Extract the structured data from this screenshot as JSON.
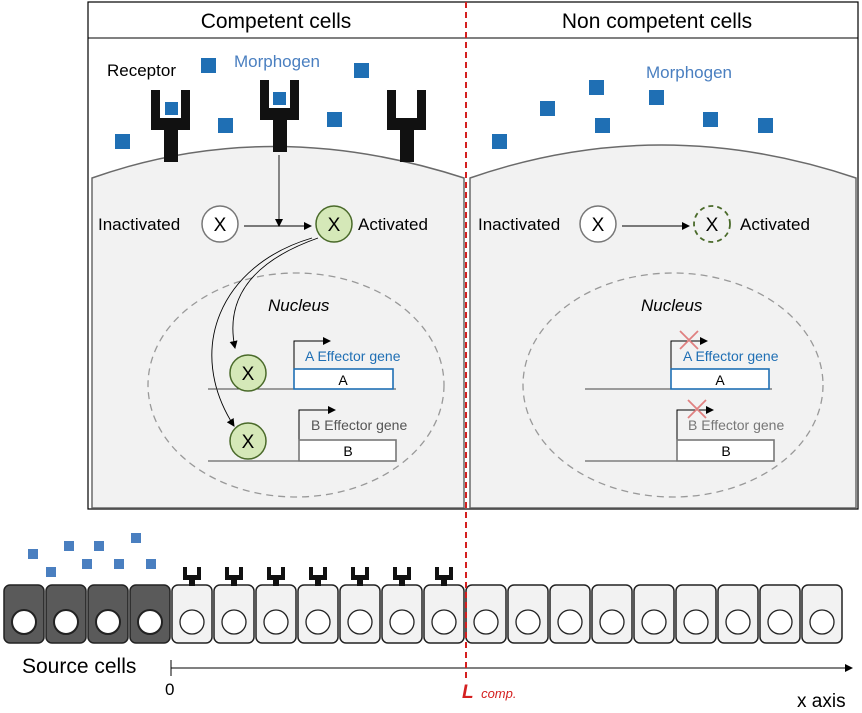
{
  "panels": {
    "left_title": "Competent cells",
    "right_title": "Non competent cells"
  },
  "labels": {
    "receptor": "Receptor",
    "morphogen_left": "Morphogen",
    "morphogen_right": "Morphogen",
    "inactivated_left": "Inactivated",
    "activated_left": "Activated",
    "inactivated_right": "Inactivated",
    "activated_right": "Activated",
    "nucleus_left": "Nucleus",
    "nucleus_right": "Nucleus",
    "factor_symbol": "X",
    "gene_a_left": "A Effector gene",
    "gene_b_left": "B Effector gene",
    "gene_a_right": "A Effector gene",
    "gene_b_right": "B Effector gene",
    "box_a": "A",
    "box_b": "B"
  },
  "axis": {
    "source_cells": "Source cells",
    "origin": "0",
    "l_comp_letter": "L",
    "l_comp_subscript": "comp.",
    "x_axis": "x axis"
  },
  "colors": {
    "morphogen": "#1f6fb4",
    "morphogen_light": "#4a7fc0",
    "activated_fill": "#d5e8b8",
    "activated_stroke": "#4a6a2a",
    "cell_fill": "#f2f2f2",
    "source_fill": "#5a5a5a",
    "boundary": "#d42020",
    "inhibit_cross": "#e08080"
  }
}
